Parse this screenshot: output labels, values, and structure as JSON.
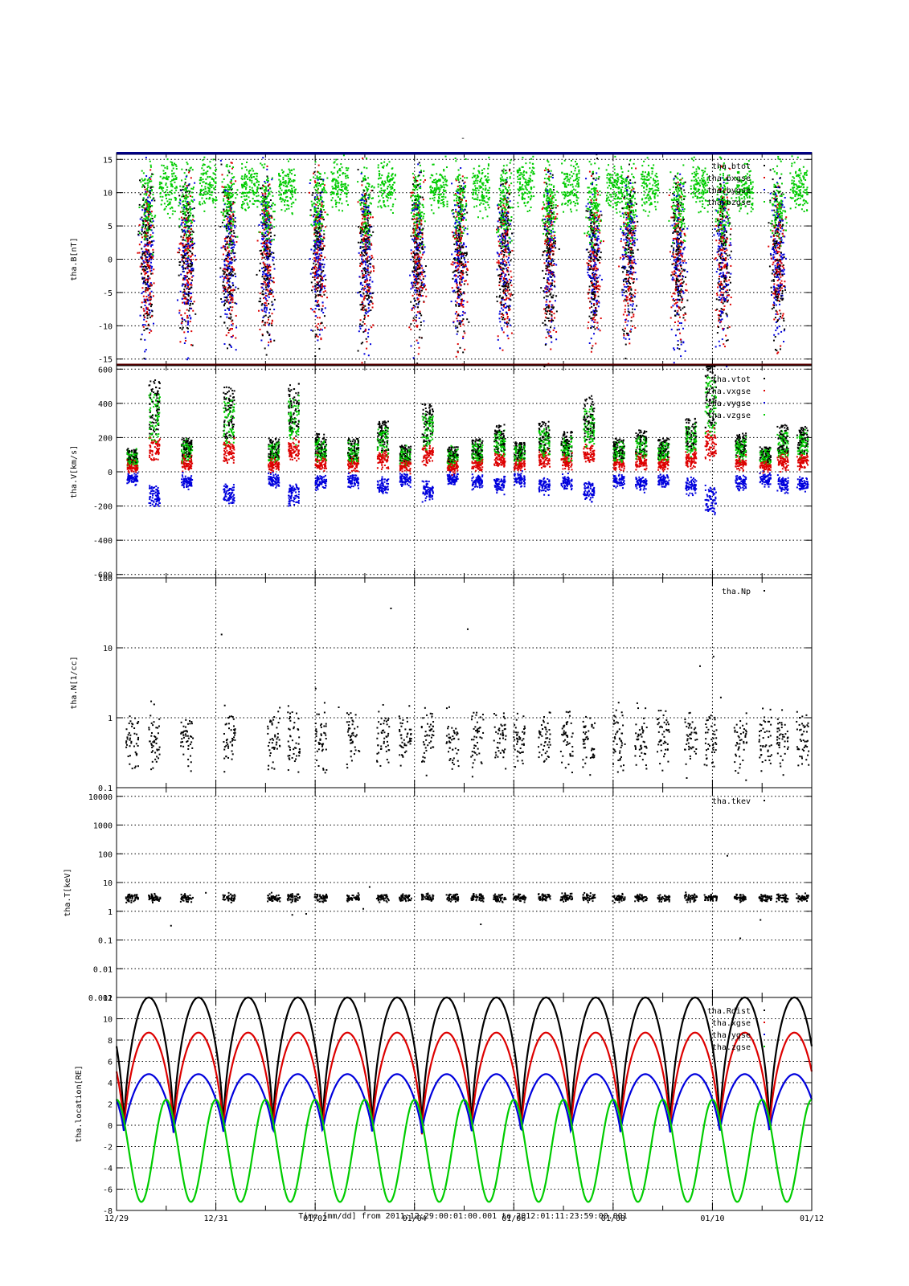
{
  "page_title": "-",
  "chart_data": {
    "type": "scatter",
    "x_range": [
      "2011-12-29 00:01",
      "2012-01-12 00:00"
    ],
    "x_tick_labels": [
      "12/29",
      "12/31",
      "01/02",
      "01/04",
      "01/06",
      "01/08",
      "01/10",
      "01/12"
    ],
    "x_minor_ticks_per_day": 1,
    "x_label": "Time [mm/dd]  from 2011:12:29:00:01:00.001  to  2012:01:11:23:59:00.001",
    "grid": true,
    "panels": [
      {
        "id": "B",
        "ylabel": "tha.B[nT]",
        "ylim": [
          -16,
          16
        ],
        "scale": "linear",
        "yticks": [
          -15,
          -10,
          -5,
          0,
          5,
          10,
          15
        ],
        "legend": [
          "tha.btot",
          "tha.bxgse",
          "tha.bygse",
          "tha.bzgse"
        ],
        "legend_colors": [
          "#000000",
          "#dd0000",
          "#0000dd",
          "#00cc00"
        ],
        "note": "scattered magnetic field points, values clipped at plot edges"
      },
      {
        "id": "V",
        "ylabel": "tha.V[km/s]",
        "ylim": [
          -620,
          620
        ],
        "scale": "linear",
        "yticks": [
          -600,
          -400,
          -200,
          0,
          200,
          400,
          600
        ],
        "legend": [
          "tha.vtot",
          "tha.vxgse",
          "tha.vygse",
          "tha.vzgse"
        ],
        "legend_colors": [
          "#000000",
          "#dd0000",
          "#0000dd",
          "#00cc00"
        ],
        "bursts_day": [
          0.3,
          0.75,
          1.4,
          2.25,
          3.15,
          3.55,
          4.1,
          4.75,
          5.35,
          5.8,
          6.25,
          6.75,
          7.25,
          7.7,
          8.1,
          8.6,
          9.05,
          9.5,
          10.1,
          10.55,
          11.0,
          11.55,
          11.95,
          12.55,
          13.05,
          13.4,
          13.8
        ],
        "bursts_peak_vtot": [
          140,
          550,
          200,
          500,
          200,
          520,
          230,
          200,
          300,
          160,
          400,
          150,
          200,
          280,
          180,
          300,
          240,
          450,
          200,
          250,
          200,
          320,
          650,
          230,
          150,
          280,
          270
        ]
      },
      {
        "id": "N",
        "ylabel": "tha.N[1/cc]",
        "ylim": [
          0.1,
          100
        ],
        "scale": "log",
        "ytick_labels": [
          "0.1",
          "1",
          "10",
          "100"
        ],
        "ytick_values": [
          0.1,
          1,
          10,
          100
        ],
        "legend": [
          "tha.Np"
        ],
        "legend_colors": [
          "#000000"
        ]
      },
      {
        "id": "T",
        "ylabel": "tha.T[keV]",
        "ylim": [
          0.001,
          20000
        ],
        "scale": "log",
        "ytick_labels": [
          "0.001",
          "0.01",
          "0.1",
          "1",
          "10",
          "100",
          "1000",
          "10000"
        ],
        "ytick_values": [
          0.001,
          0.01,
          0.1,
          1,
          10,
          100,
          1000,
          10000
        ],
        "legend": [
          "tha.tkev"
        ],
        "legend_colors": [
          "#000000"
        ]
      },
      {
        "id": "location",
        "ylabel": "tha.location[RE]",
        "ylim": [
          -8,
          12
        ],
        "scale": "linear",
        "yticks": [
          -8,
          -6,
          -4,
          -2,
          0,
          2,
          4,
          6,
          8,
          10,
          12
        ],
        "legend": [
          "tha.Rdist",
          "tha.xgse",
          "tha.ygse",
          "tha.zgse"
        ],
        "legend_colors": [
          "#000000",
          "#dd0000",
          "#0000dd",
          "#00cc00"
        ],
        "orbit_period_days": 1.0,
        "perigee_days": [
          0.15,
          1.15,
          2.15,
          3.15,
          4.15,
          5.15,
          6.15,
          7.15,
          8.15,
          9.15,
          10.15,
          11.15,
          12.15,
          13.15
        ],
        "apogee_Rdist": 12,
        "apogee_xgse": 9.5,
        "apogee_ygse": 5.6,
        "min_zgse": -7.2,
        "max_zgse": 2.4
      }
    ]
  }
}
